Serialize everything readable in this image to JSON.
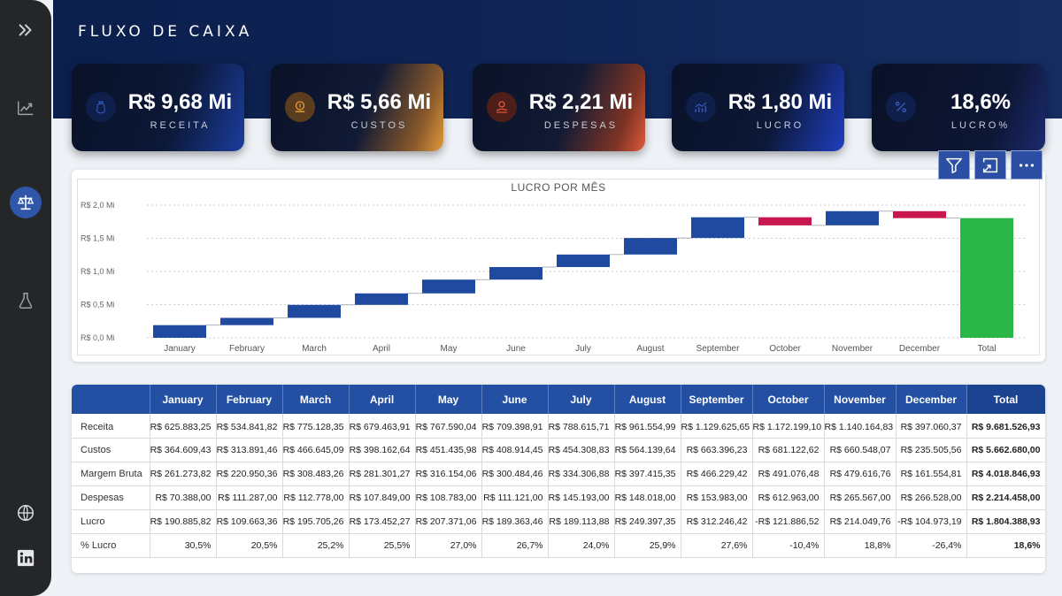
{
  "sidebar": {
    "icons": [
      "expand-icon",
      "chart-up-icon",
      "scales-icon",
      "flask-icon",
      "globe-icon",
      "linkedin-icon"
    ]
  },
  "page": {
    "title": "FLUXO DE CAIXA"
  },
  "kpis": [
    {
      "value": "R$ 9,68 Mi",
      "label": "RECEITA",
      "icon": "money-bag-icon",
      "accent": "#1b3d9c"
    },
    {
      "value": "R$ 5,66 Mi",
      "label": "CUSTOS",
      "icon": "coin-icon",
      "accent": "#d98a2b"
    },
    {
      "value": "R$ 2,21 Mi",
      "label": "DESPESAS",
      "icon": "hand-coin-icon",
      "accent": "#d9573b"
    },
    {
      "value": "R$ 1,80 Mi",
      "label": "LUCRO",
      "icon": "growth-chart-icon",
      "accent": "#1f3fc0"
    },
    {
      "value": "18,6%",
      "label": "LUCRO%",
      "icon": "percent-icon",
      "accent": "#1c2a6e"
    }
  ],
  "toolbar": {
    "filter": "filter-icon",
    "focus": "focus-mode-icon",
    "more": "more-options-icon"
  },
  "chart_data": {
    "type": "waterfall",
    "title": "LUCRO POR MÊS",
    "categories": [
      "January",
      "February",
      "March",
      "April",
      "May",
      "June",
      "July",
      "August",
      "September",
      "October",
      "November",
      "December",
      "Total"
    ],
    "values": [
      190885.82,
      109663.36,
      195705.26,
      173452.27,
      207371.06,
      189363.46,
      189113.88,
      249397.35,
      312246.42,
      -121886.52,
      214049.76,
      -104973.19,
      1804388.93
    ],
    "total_index": 12,
    "y_ticks": [
      "R$ 0,0 Mi",
      "R$ 0,5 Mi",
      "R$ 1,0 Mi",
      "R$ 1,5 Mi",
      "R$ 2,0 Mi"
    ],
    "ylim": [
      0,
      2000000
    ],
    "grid": true,
    "colors": {
      "increase": "#1f4aa0",
      "decrease": "#c8164e",
      "total": "#2bb64a"
    }
  },
  "table": {
    "headers": [
      "",
      "January",
      "February",
      "March",
      "April",
      "May",
      "June",
      "July",
      "August",
      "September",
      "October",
      "November",
      "December",
      "Total"
    ],
    "rows": [
      [
        "Receita",
        "R$ 625.883,25",
        "R$ 534.841,82",
        "R$ 775.128,35",
        "R$ 679.463,91",
        "R$ 767.590,04",
        "R$ 709.398,91",
        "R$ 788.615,71",
        "R$ 961.554,99",
        "R$ 1.129.625,65",
        "R$ 1.172.199,10",
        "R$ 1.140.164,83",
        "R$ 397.060,37",
        "R$ 9.681.526,93"
      ],
      [
        "Custos",
        "R$ 364.609,43",
        "R$ 313.891,46",
        "R$ 466.645,09",
        "R$ 398.162,64",
        "R$ 451.435,98",
        "R$ 408.914,45",
        "R$ 454.308,83",
        "R$ 564.139,64",
        "R$ 663.396,23",
        "R$ 681.122,62",
        "R$ 660.548,07",
        "R$ 235.505,56",
        "R$ 5.662.680,00"
      ],
      [
        "Margem Bruta",
        "R$ 261.273,82",
        "R$ 220.950,36",
        "R$ 308.483,26",
        "R$ 281.301,27",
        "R$ 316.154,06",
        "R$ 300.484,46",
        "R$ 334.306,88",
        "R$ 397.415,35",
        "R$ 466.229,42",
        "R$ 491.076,48",
        "R$ 479.616,76",
        "R$ 161.554,81",
        "R$ 4.018.846,93"
      ],
      [
        "Despesas",
        "R$ 70.388,00",
        "R$ 111.287,00",
        "R$ 112.778,00",
        "R$ 107.849,00",
        "R$ 108.783,00",
        "R$ 111.121,00",
        "R$ 145.193,00",
        "R$ 148.018,00",
        "R$ 153.983,00",
        "R$ 612.963,00",
        "R$ 265.567,00",
        "R$ 266.528,00",
        "R$ 2.214.458,00"
      ],
      [
        "Lucro",
        "R$ 190.885,82",
        "R$ 109.663,36",
        "R$ 195.705,26",
        "R$ 173.452,27",
        "R$ 207.371,06",
        "R$ 189.363,46",
        "R$ 189.113,88",
        "R$ 249.397,35",
        "R$ 312.246,42",
        "-R$ 121.886,52",
        "R$ 214.049,76",
        "-R$ 104.973,19",
        "R$ 1.804.388,93"
      ],
      [
        "% Lucro",
        "30,5%",
        "20,5%",
        "25,2%",
        "25,5%",
        "27,0%",
        "26,7%",
        "24,0%",
        "25,9%",
        "27,6%",
        "-10,4%",
        "18,8%",
        "-26,4%",
        "18,6%"
      ]
    ]
  }
}
